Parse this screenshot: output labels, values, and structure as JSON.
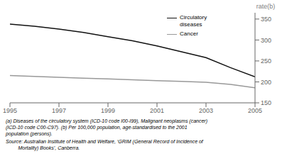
{
  "chart_data": {
    "type": "line",
    "x": [
      1995,
      1996,
      1997,
      1998,
      1999,
      2000,
      2001,
      2002,
      2003,
      2004,
      2005
    ],
    "series": [
      {
        "name": "Circulatory\ndiseases",
        "color": "#111111",
        "values": [
          338,
          333,
          326,
          318,
          308,
          298,
          286,
          272,
          258,
          234,
          212
        ]
      },
      {
        "name": "Cancer",
        "color": "#999999",
        "values": [
          215,
          213,
          211,
          209,
          207,
          205,
          203,
          201,
          199,
          194,
          186
        ]
      }
    ],
    "ylabel": "rate(b)",
    "xlim": [
      1995,
      2005
    ],
    "xticks": [
      1995,
      1997,
      1999,
      2001,
      2003,
      2005
    ],
    "ylim": [
      150,
      365
    ],
    "yticks": [
      150,
      200,
      250,
      300,
      350
    ],
    "grid": false,
    "legend": "upper right",
    "annotations": [
      "(a) Diseases of the circulatory system (ICD-10 code I00-I99), Malignant neoplasms (cancer)\n(ICD-10 code C00-C97). (b) Per 100,000 population, age-standardised to the 2001\npopulation (persons).",
      "Source: Australian Institute of Health and Welfare, ‘GRIM (General Record of Incidence of\n         Mortality) Books’, Canberra."
    ]
  }
}
